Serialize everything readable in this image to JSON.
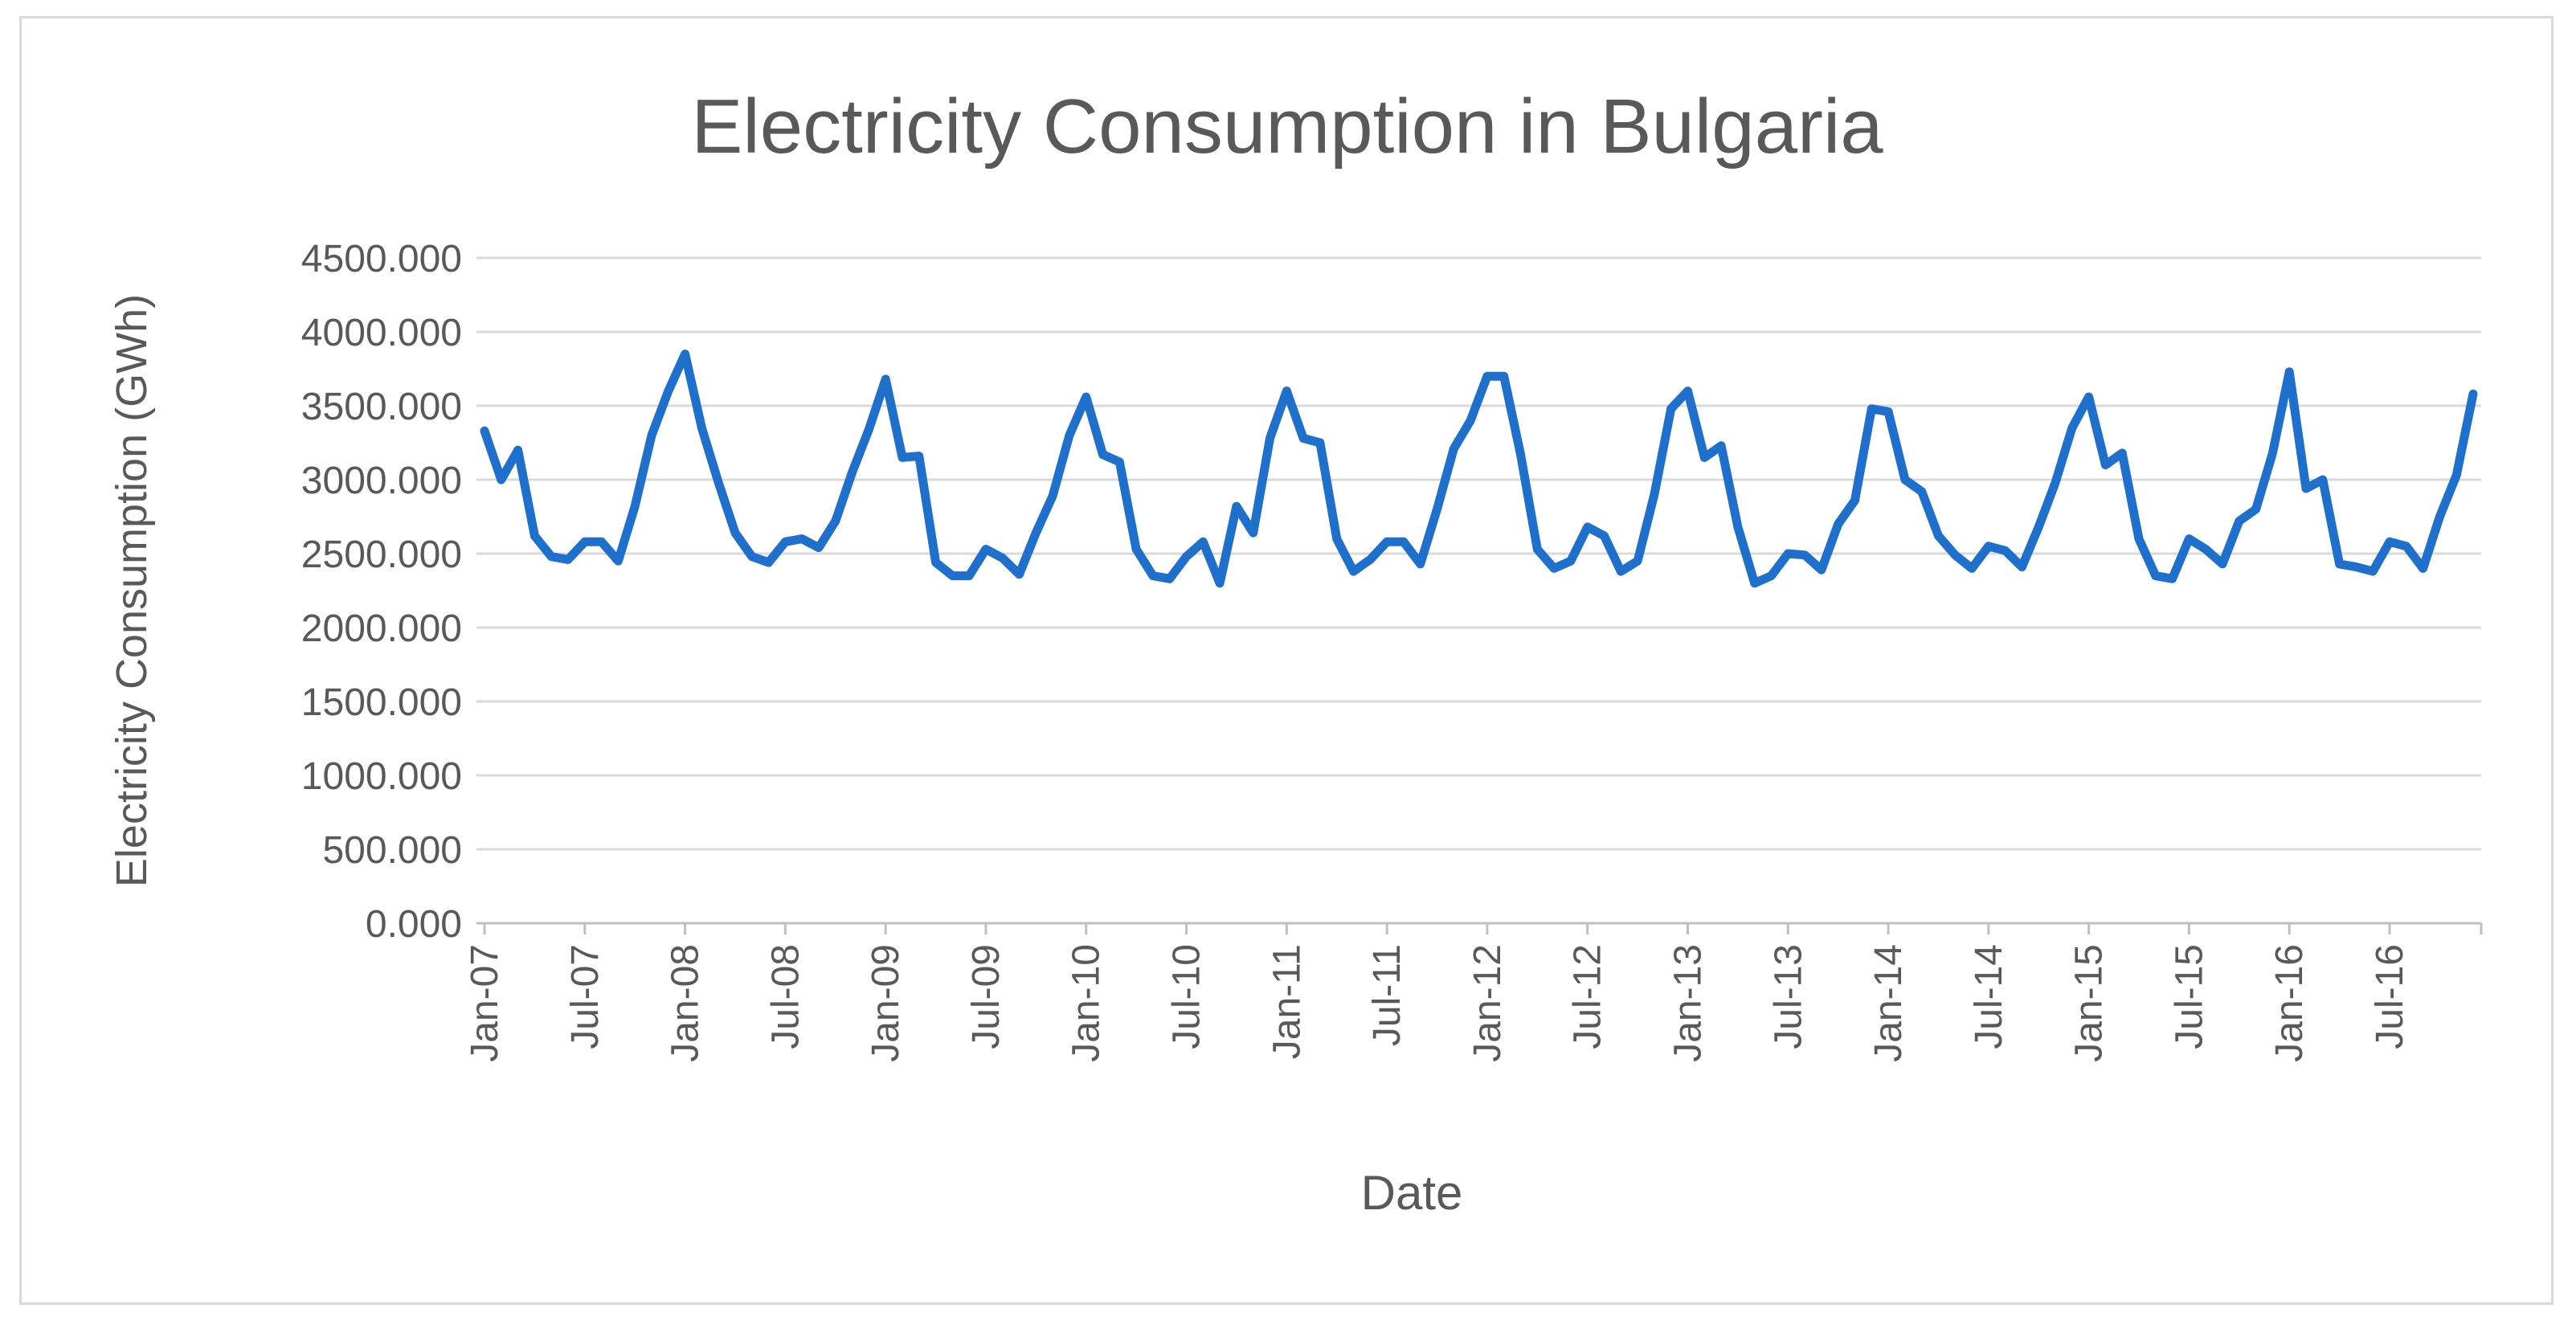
{
  "chart_data": {
    "type": "line",
    "title": "Electricity Consumption in Bulgaria",
    "xlabel": "Date",
    "ylabel": "Electricity Consumption (GWh)",
    "ylim": [
      0,
      4500
    ],
    "yticks": [
      "0.000",
      "500.000",
      "1000.000",
      "1500.000",
      "2000.000",
      "2500.000",
      "3000.000",
      "3500.000",
      "4000.000",
      "4500.000"
    ],
    "xtick_labels": [
      "Jan-07",
      "Jul-07",
      "Jan-08",
      "Jul-08",
      "Jan-09",
      "Jul-09",
      "Jan-10",
      "Jul-10",
      "Jan-11",
      "Jul-11",
      "Jan-12",
      "Jul-12",
      "Jan-13",
      "Jul-13",
      "Jan-14",
      "Jul-14",
      "Jan-15",
      "Jul-15",
      "Jan-16",
      "Jul-16"
    ],
    "x_start": "Jan-07",
    "x_end": "Dec-16",
    "x_frequency": "monthly",
    "grid": "horizontal",
    "legend": "none",
    "line_color": "#1f6fcc",
    "values": [
      3330,
      3000,
      3200,
      2620,
      2480,
      2460,
      2580,
      2580,
      2450,
      2820,
      3300,
      3600,
      3850,
      3350,
      2980,
      2640,
      2480,
      2440,
      2580,
      2600,
      2540,
      2720,
      3050,
      3340,
      3680,
      3150,
      3160,
      2440,
      2350,
      2350,
      2530,
      2470,
      2360,
      2640,
      2890,
      3300,
      3560,
      3170,
      3120,
      2530,
      2350,
      2330,
      2480,
      2580,
      2300,
      2820,
      2640,
      3280,
      3600,
      3280,
      3250,
      2600,
      2380,
      2460,
      2580,
      2580,
      2430,
      2800,
      3210,
      3400,
      3700,
      3700,
      3170,
      2530,
      2400,
      2450,
      2680,
      2620,
      2380,
      2450,
      2900,
      3480,
      3600,
      3150,
      3230,
      2680,
      2300,
      2350,
      2500,
      2490,
      2390,
      2700,
      2860,
      3480,
      3460,
      3000,
      2920,
      2620,
      2490,
      2400,
      2550,
      2520,
      2410,
      2680,
      2980,
      3350,
      3560,
      3100,
      3180,
      2600,
      2350,
      2330,
      2600,
      2530,
      2430,
      2720,
      2800,
      3180,
      3730,
      2940,
      3000,
      2430,
      2410,
      2380,
      2580,
      2550,
      2400,
      2750,
      3030,
      3580
    ]
  }
}
